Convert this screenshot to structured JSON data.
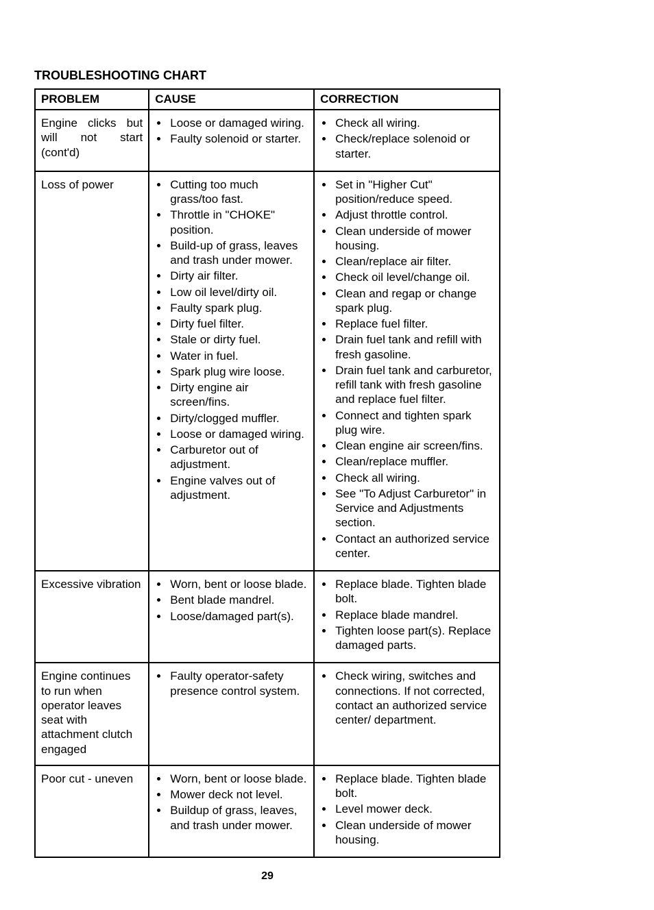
{
  "title": "TROUBLESHOOTING CHART",
  "page_number": "29",
  "headers": {
    "problem": "PROBLEM",
    "cause": "CAUSE",
    "correction": "CORRECTION"
  },
  "rows": [
    {
      "problem": "Engine clicks but will not start (cont'd)",
      "causes": [
        "Loose or damaged wiring.",
        "Faulty solenoid or starter."
      ],
      "corrections": [
        "Check all wiring.",
        "Check/replace solenoid or starter."
      ]
    },
    {
      "problem": "Loss of power",
      "causes": [
        "Cutting too much grass/too fast.",
        "Throttle in \"CHOKE\" position.",
        "Build-up of grass, leaves and trash under mower.",
        "Dirty air filter.",
        "Low oil level/dirty oil.",
        "Faulty spark plug.",
        "Dirty fuel filter.",
        "Stale or dirty fuel.",
        "Water in fuel.",
        "Spark plug wire loose.",
        "Dirty engine air screen/fins.",
        "Dirty/clogged muffler.",
        "Loose or damaged wiring.",
        "Carburetor out of adjustment.",
        "Engine valves out of adjustment."
      ],
      "corrections": [
        "Set in \"Higher Cut\" position/reduce speed.",
        "Adjust throttle control.",
        "Clean underside of mower housing.",
        "Clean/replace air filter.",
        "Check oil level/change oil.",
        "Clean and regap or change spark plug.",
        "Replace fuel filter.",
        "Drain fuel tank and refill with fresh gasoline.",
        "Drain fuel tank and carburetor, refill tank with fresh gasoline and replace fuel filter.",
        "Connect and tighten spark plug wire.",
        "Clean engine air screen/fins.",
        "Clean/replace muffler.",
        "Check all wiring.",
        "See \"To Adjust Carburetor\" in Service and Adjustments section.",
        "Contact an authorized service center."
      ]
    },
    {
      "problem": "Excessive vibration",
      "causes": [
        "Worn, bent or loose blade.",
        "Bent blade mandrel.",
        "Loose/damaged part(s)."
      ],
      "corrections": [
        "Replace blade. Tighten blade bolt.",
        "Replace blade mandrel.",
        "Tighten loose part(s). Replace damaged parts."
      ]
    },
    {
      "problem": "Engine continues to run when operator leaves seat with attachment clutch engaged",
      "causes": [
        "Faulty operator-safety presence control system."
      ],
      "corrections": [
        "Check wiring, switches and connections. If not corrected, contact an authorized service center/ department."
      ]
    },
    {
      "problem": "Poor cut - uneven",
      "causes": [
        "Worn, bent or loose blade.",
        "Mower deck not level.",
        "Buildup of grass, leaves, and trash under mower."
      ],
      "corrections": [
        "Replace blade. Tighten blade bolt.",
        "Level mower deck.",
        "Clean underside of mower housing."
      ]
    }
  ]
}
